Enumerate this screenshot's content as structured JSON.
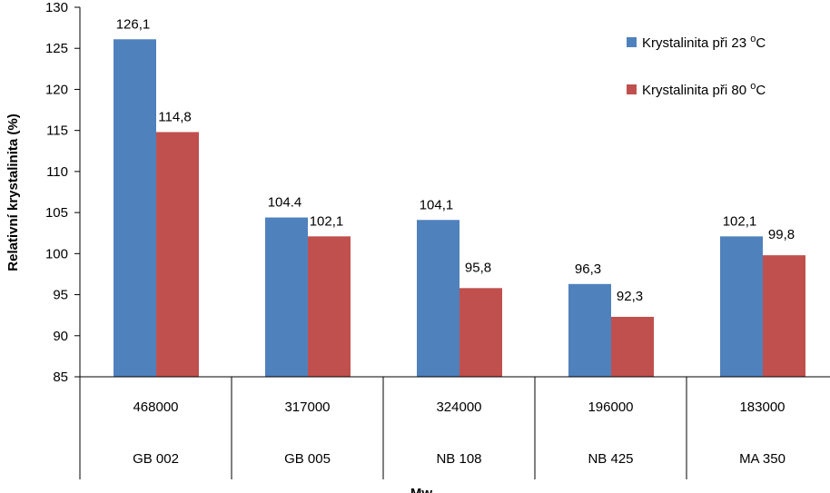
{
  "chart_data": {
    "type": "bar",
    "title": "",
    "ylabel": "Relativní krystalinita (%)",
    "xlabel": "Mw",
    "ylim": [
      85,
      130
    ],
    "yticks": [
      85,
      90,
      95,
      100,
      105,
      110,
      115,
      120,
      125,
      130
    ],
    "grid": false,
    "legend_position": "top-right",
    "categories": [
      {
        "mw": "468000",
        "sample": "GB 002"
      },
      {
        "mw": "317000",
        "sample": "GB 005"
      },
      {
        "mw": "324000",
        "sample": "NB 108"
      },
      {
        "mw": "196000",
        "sample": "NB 425"
      },
      {
        "mw": "183000",
        "sample": "MA 350"
      }
    ],
    "series": [
      {
        "name": "Krystalinita při 23",
        "unit": "°C",
        "color": "#4f81bd",
        "values": [
          126.1,
          104.4,
          104.1,
          96.3,
          102.1
        ],
        "labels": [
          "126,1",
          "104.4",
          "104,1",
          "96,3",
          "102,1"
        ]
      },
      {
        "name": "Krystalinita při 80",
        "unit": "°C",
        "color": "#c0504d",
        "values": [
          114.8,
          102.1,
          95.8,
          92.3,
          99.8
        ],
        "labels": [
          "114,8",
          "102,1",
          "95,8",
          "92,3",
          "99,8"
        ]
      }
    ]
  }
}
